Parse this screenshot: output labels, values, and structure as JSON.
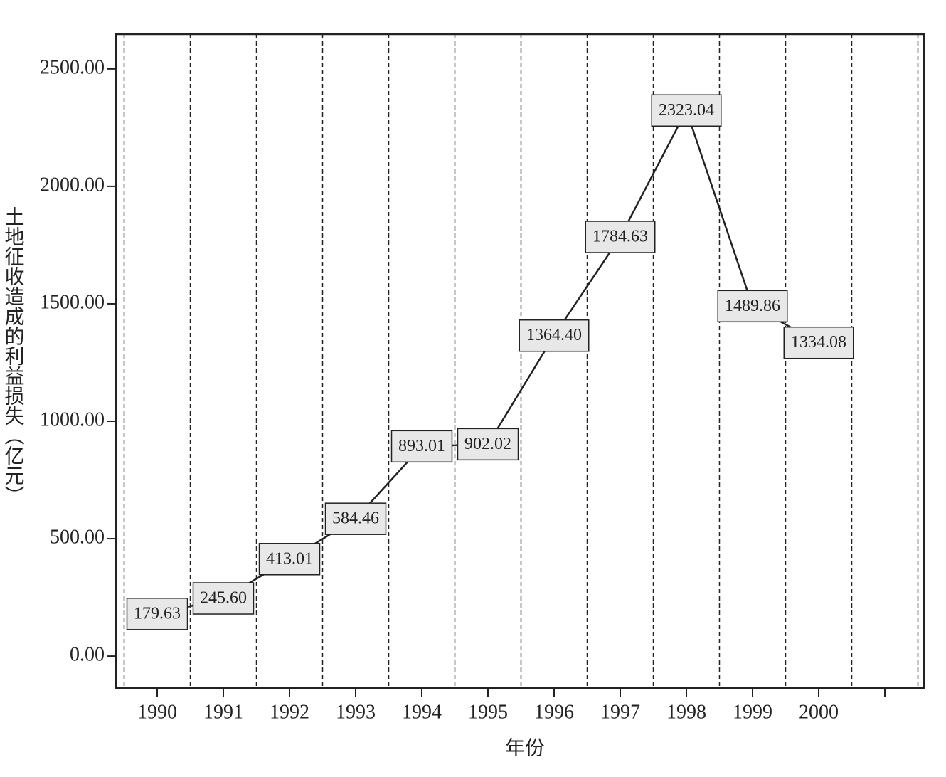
{
  "chart_data": {
    "type": "line",
    "x_label": "年份",
    "y_label": "土地征收造成的利益损失（亿元）",
    "categories": [
      "1990",
      "1991",
      "1992",
      "1993",
      "1994",
      "1995",
      "1996",
      "1997",
      "1998",
      "1999",
      "2000",
      null
    ],
    "values": [
      179.63,
      245.6,
      413.01,
      584.46,
      893.01,
      902.02,
      1364.4,
      1784.63,
      2323.04,
      1489.86,
      1334.08,
      null
    ],
    "value_labels": [
      "179.63",
      "245.60",
      "413.01",
      "584.46",
      "893.01",
      "902.02",
      "1364.40",
      "1784.63",
      "2323.04",
      "1489.86",
      "1334.08",
      null
    ],
    "color": "#222222",
    "ylim": [
      -136,
      2648
    ],
    "yticks": [
      {
        "value": 0,
        "label": "0.00"
      },
      {
        "value": 500,
        "label": "500.00"
      },
      {
        "value": 1000,
        "label": "1000.00"
      },
      {
        "value": 1500,
        "label": "1500.00"
      },
      {
        "value": 2000,
        "label": "2000.00"
      },
      {
        "value": 2500,
        "label": "2500.00"
      }
    ]
  }
}
